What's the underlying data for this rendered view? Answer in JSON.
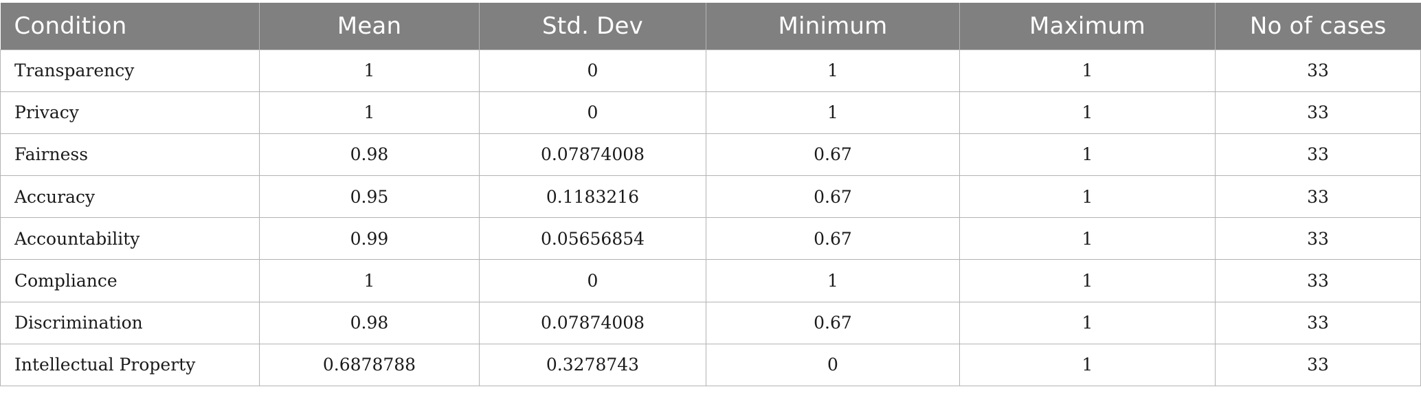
{
  "table": {
    "headers": [
      "Condition",
      "Mean",
      "Std. Dev",
      "Minimum",
      "Maximum",
      "No of cases"
    ],
    "rows": [
      [
        "Transparency",
        "1",
        "0",
        "1",
        "1",
        "33"
      ],
      [
        "Privacy",
        "1",
        "0",
        "1",
        "1",
        "33"
      ],
      [
        "Fairness",
        "0.98",
        "0.07874008",
        "0.67",
        "1",
        "33"
      ],
      [
        "Accuracy",
        "0.95",
        "0.1183216",
        "0.67",
        "1",
        "33"
      ],
      [
        "Accountability",
        "0.99",
        "0.05656854",
        "0.67",
        "1",
        "33"
      ],
      [
        "Compliance",
        "1",
        "0",
        "1",
        "1",
        "33"
      ],
      [
        "Discrimination",
        "0.98",
        "0.07874008",
        "0.67",
        "1",
        "33"
      ],
      [
        "Intellectual Property",
        "0.6878788",
        "0.3278743",
        "0",
        "1",
        "33"
      ]
    ]
  },
  "colors": {
    "header_bg": "#808080",
    "header_text": "#ffffff",
    "grid_line": "#b3b3b3",
    "body_text": "#1a1a1a"
  }
}
